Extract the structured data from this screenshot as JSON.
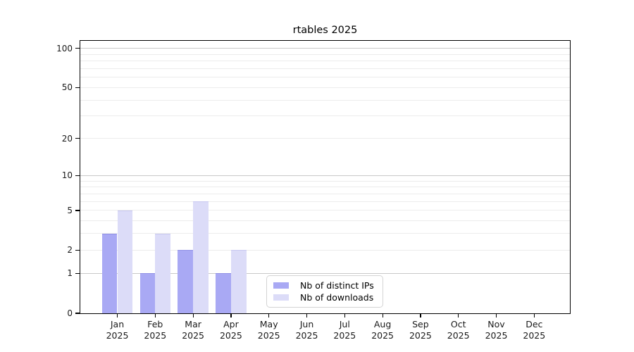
{
  "figure": {
    "title": "rtables 2025"
  },
  "chart_data": {
    "type": "bar",
    "title": "rtables 2025",
    "categories": [
      {
        "month": "Jan",
        "year": "2025"
      },
      {
        "month": "Feb",
        "year": "2025"
      },
      {
        "month": "Mar",
        "year": "2025"
      },
      {
        "month": "Apr",
        "year": "2025"
      },
      {
        "month": "May",
        "year": "2025"
      },
      {
        "month": "Jun",
        "year": "2025"
      },
      {
        "month": "Jul",
        "year": "2025"
      },
      {
        "month": "Aug",
        "year": "2025"
      },
      {
        "month": "Sep",
        "year": "2025"
      },
      {
        "month": "Oct",
        "year": "2025"
      },
      {
        "month": "Nov",
        "year": "2025"
      },
      {
        "month": "Dec",
        "year": "2025"
      }
    ],
    "series": [
      {
        "name": "Nb of distinct IPs",
        "color": "#a9a9f4",
        "edge_color": "#9191e6",
        "values": [
          3,
          1,
          2,
          1,
          0,
          0,
          0,
          0,
          0,
          0,
          0,
          0
        ]
      },
      {
        "name": "Nb of downloads",
        "color": "#dcdcf8",
        "edge_color": "#c8c8f0",
        "values": [
          5,
          3,
          6,
          2,
          0,
          0,
          0,
          0,
          0,
          0,
          0,
          0
        ]
      }
    ],
    "y_axis": {
      "scale": "log1p",
      "ticks": [
        0,
        1,
        2,
        5,
        10,
        20,
        50,
        100
      ],
      "major_gridlines": [
        1,
        10,
        100
      ],
      "minor_gridlines": [
        2,
        3,
        4,
        5,
        6,
        7,
        8,
        9,
        20,
        30,
        40,
        50,
        60,
        70,
        80,
        90
      ],
      "range": [
        0,
        114
      ]
    },
    "x_axis": {
      "label_lines": 2
    },
    "legend": {
      "position": "lower center"
    },
    "grid": true,
    "colors": {
      "background": "#ffffff",
      "axis": "#000000",
      "text": "#1a1a1a",
      "major_grid": "#c9c9c9",
      "minor_grid": "#ececec",
      "legend_border": "#d4d4d4"
    }
  }
}
